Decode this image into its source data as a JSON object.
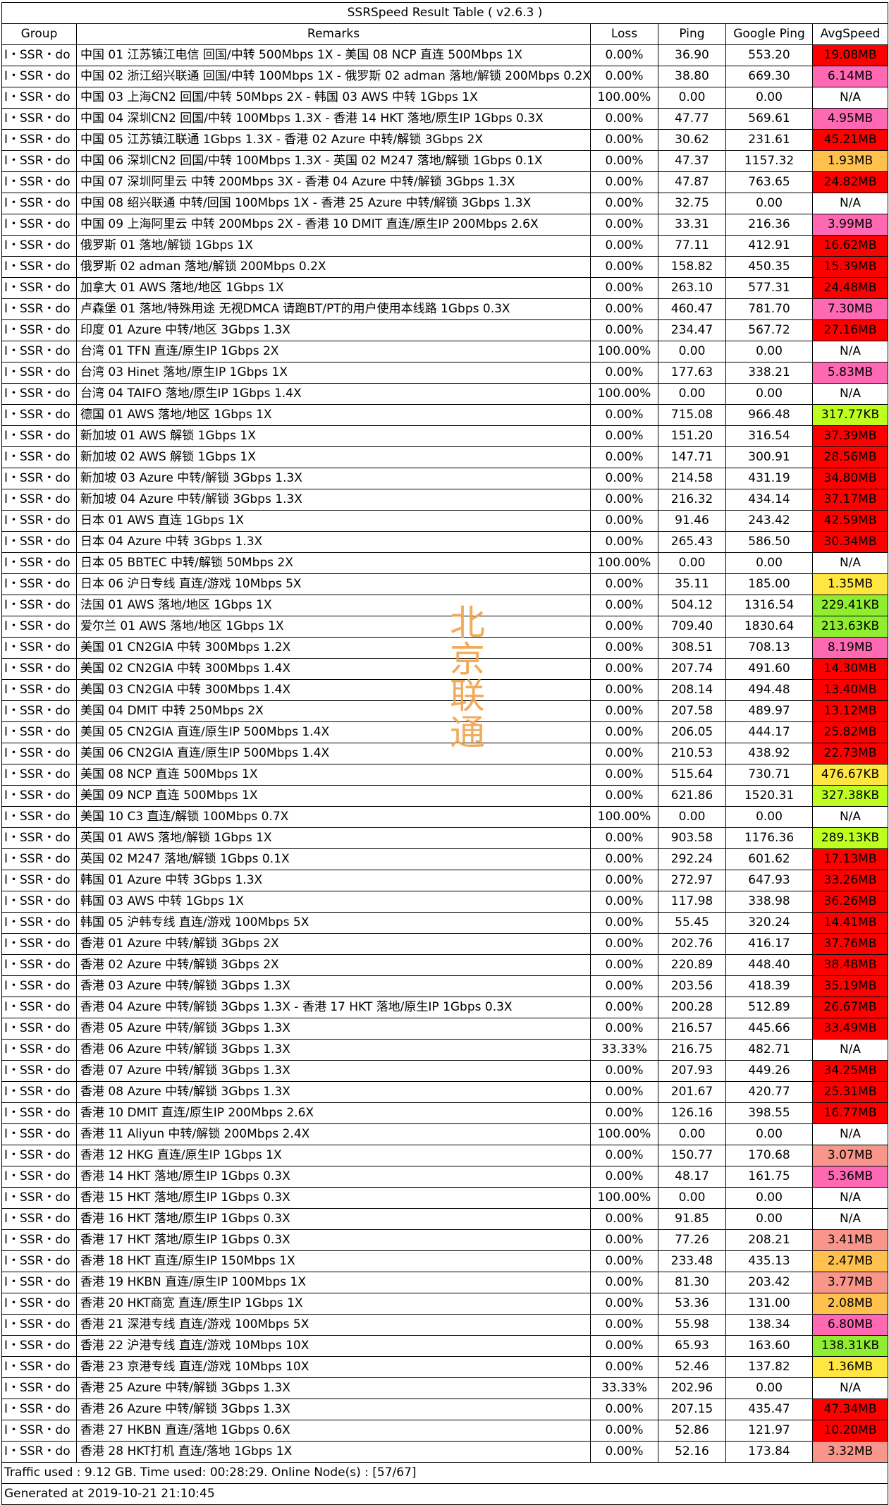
{
  "title": "SSRSpeed Result Table ( v2.6.3 )",
  "headers": [
    "Group",
    "Remarks",
    "Loss",
    "Ping",
    "Google Ping",
    "AvgSpeed"
  ],
  "colors": {
    "na": "#ffffff",
    "red": "#ff0000",
    "pink": "#ff69b4",
    "salmon": "#f9968b",
    "orange": "#ffc04d",
    "yellow": "#ffe640",
    "lime": "#bfff20",
    "green": "#90ee30"
  },
  "rows": [
    {
      "group": "I・SSR・do",
      "remarks": "中国 01 江苏镇江电信 回国/中转 500Mbps 1X - 美国 08 NCP 直连 500Mbps 1X",
      "loss": "0.00%",
      "ping": "36.90",
      "gping": "553.20",
      "speed": "19.08MB",
      "color": "red"
    },
    {
      "group": "I・SSR・do",
      "remarks": "中国 02 浙江绍兴联通 回国/中转 100Mbps 1X - 俄罗斯 02 adman 落地/解锁 200Mbps 0.2X",
      "loss": "0.00%",
      "ping": "38.80",
      "gping": "669.30",
      "speed": "6.14MB",
      "color": "pink"
    },
    {
      "group": "I・SSR・do",
      "remarks": "中国 03 上海CN2 回国/中转 50Mbps 2X - 韩国 03 AWS 中转 1Gbps 1X",
      "loss": "100.00%",
      "ping": "0.00",
      "gping": "0.00",
      "speed": "N/A",
      "color": "na"
    },
    {
      "group": "I・SSR・do",
      "remarks": "中国 04 深圳CN2 回国/中转 100Mbps 1.3X - 香港 14 HKT 落地/原生IP 1Gbps 0.3X",
      "loss": "0.00%",
      "ping": "47.77",
      "gping": "569.61",
      "speed": "4.95MB",
      "color": "pink"
    },
    {
      "group": "I・SSR・do",
      "remarks": "中国 05 江苏镇江联通 1Gbps 1.3X - 香港 02 Azure 中转/解锁 3Gbps 2X",
      "loss": "0.00%",
      "ping": "30.62",
      "gping": "231.61",
      "speed": "45.21MB",
      "color": "red"
    },
    {
      "group": "I・SSR・do",
      "remarks": "中国 06 深圳CN2 回国/中转 100Mbps 1.3X - 英国 02 M247 落地/解锁 1Gbps 0.1X",
      "loss": "0.00%",
      "ping": "47.37",
      "gping": "1157.32",
      "speed": "1.93MB",
      "color": "orange"
    },
    {
      "group": "I・SSR・do",
      "remarks": "中国 07 深圳阿里云 中转 200Mbps 3X - 香港 04 Azure 中转/解锁 3Gbps 1.3X",
      "loss": "0.00%",
      "ping": "47.87",
      "gping": "763.65",
      "speed": "24.82MB",
      "color": "red"
    },
    {
      "group": "I・SSR・do",
      "remarks": "中国 08 绍兴联通 中转/回国 100Mbps 1X - 香港 25 Azure 中转/解锁 3Gbps 1.3X",
      "loss": "0.00%",
      "ping": "32.75",
      "gping": "0.00",
      "speed": "N/A",
      "color": "na"
    },
    {
      "group": "I・SSR・do",
      "remarks": "中国 09 上海阿里云 中转 200Mbps 2X - 香港 10 DMIT 直连/原生IP 200Mbps 2.6X",
      "loss": "0.00%",
      "ping": "33.31",
      "gping": "216.36",
      "speed": "3.99MB",
      "color": "pink"
    },
    {
      "group": "I・SSR・do",
      "remarks": "俄罗斯 01 落地/解锁 1Gbps 1X",
      "loss": "0.00%",
      "ping": "77.11",
      "gping": "412.91",
      "speed": "16.62MB",
      "color": "red"
    },
    {
      "group": "I・SSR・do",
      "remarks": "俄罗斯 02 adman 落地/解锁 200Mbps 0.2X",
      "loss": "0.00%",
      "ping": "158.82",
      "gping": "450.35",
      "speed": "15.39MB",
      "color": "red"
    },
    {
      "group": "I・SSR・do",
      "remarks": "加拿大 01 AWS 落地/地区 1Gbps 1X",
      "loss": "0.00%",
      "ping": "263.10",
      "gping": "577.31",
      "speed": "24.48MB",
      "color": "red"
    },
    {
      "group": "I・SSR・do",
      "remarks": "卢森堡 01 落地/特殊用途 无视DMCA 请跑BT/PT的用户使用本线路 1Gbps 0.3X",
      "loss": "0.00%",
      "ping": "460.47",
      "gping": "781.70",
      "speed": "7.30MB",
      "color": "pink"
    },
    {
      "group": "I・SSR・do",
      "remarks": "印度 01 Azure 中转/地区 3Gbps 1.3X",
      "loss": "0.00%",
      "ping": "234.47",
      "gping": "567.72",
      "speed": "27.16MB",
      "color": "red"
    },
    {
      "group": "I・SSR・do",
      "remarks": "台湾 01 TFN 直连/原生IP 1Gbps 2X",
      "loss": "100.00%",
      "ping": "0.00",
      "gping": "0.00",
      "speed": "N/A",
      "color": "na"
    },
    {
      "group": "I・SSR・do",
      "remarks": "台湾 03 Hinet 落地/原生IP 1Gbps 1X",
      "loss": "0.00%",
      "ping": "177.63",
      "gping": "338.21",
      "speed": "5.83MB",
      "color": "pink"
    },
    {
      "group": "I・SSR・do",
      "remarks": "台湾 04 TAIFO 落地/原生IP 1Gbps 1.4X",
      "loss": "100.00%",
      "ping": "0.00",
      "gping": "0.00",
      "speed": "N/A",
      "color": "na"
    },
    {
      "group": "I・SSR・do",
      "remarks": "德国 01 AWS 落地/地区 1Gbps 1X",
      "loss": "0.00%",
      "ping": "715.08",
      "gping": "966.48",
      "speed": "317.77KB",
      "color": "lime"
    },
    {
      "group": "I・SSR・do",
      "remarks": "新加坡 01 AWS 解锁 1Gbps 1X",
      "loss": "0.00%",
      "ping": "151.20",
      "gping": "316.54",
      "speed": "37.39MB",
      "color": "red"
    },
    {
      "group": "I・SSR・do",
      "remarks": "新加坡 02 AWS 解锁 1Gbps 1X",
      "loss": "0.00%",
      "ping": "147.71",
      "gping": "300.91",
      "speed": "28.56MB",
      "color": "red"
    },
    {
      "group": "I・SSR・do",
      "remarks": "新加坡 03 Azure 中转/解锁 3Gbps 1.3X",
      "loss": "0.00%",
      "ping": "214.58",
      "gping": "431.19",
      "speed": "34.80MB",
      "color": "red"
    },
    {
      "group": "I・SSR・do",
      "remarks": "新加坡 04 Azure 中转/解锁 3Gbps 1.3X",
      "loss": "0.00%",
      "ping": "216.32",
      "gping": "434.14",
      "speed": "37.17MB",
      "color": "red"
    },
    {
      "group": "I・SSR・do",
      "remarks": "日本 01 AWS 直连 1Gbps 1X",
      "loss": "0.00%",
      "ping": "91.46",
      "gping": "243.42",
      "speed": "42.59MB",
      "color": "red"
    },
    {
      "group": "I・SSR・do",
      "remarks": "日本 04 Azure 中转 3Gbps 1.3X",
      "loss": "0.00%",
      "ping": "265.43",
      "gping": "586.50",
      "speed": "30.34MB",
      "color": "red"
    },
    {
      "group": "I・SSR・do",
      "remarks": "日本 05 BBTEC 中转/解锁 50Mbps 2X",
      "loss": "100.00%",
      "ping": "0.00",
      "gping": "0.00",
      "speed": "N/A",
      "color": "na"
    },
    {
      "group": "I・SSR・do",
      "remarks": "日本 06 沪日专线 直连/游戏 10Mbps 5X",
      "loss": "0.00%",
      "ping": "35.11",
      "gping": "185.00",
      "speed": "1.35MB",
      "color": "yellow"
    },
    {
      "group": "I・SSR・do",
      "remarks": "法国 01 AWS 落地/地区 1Gbps 1X",
      "loss": "0.00%",
      "ping": "504.12",
      "gping": "1316.54",
      "speed": "229.41KB",
      "color": "green"
    },
    {
      "group": "I・SSR・do",
      "remarks": "爱尔兰 01 AWS 落地/地区 1Gbps 1X",
      "loss": "0.00%",
      "ping": "709.40",
      "gping": "1830.64",
      "speed": "213.63KB",
      "color": "green"
    },
    {
      "group": "I・SSR・do",
      "remarks": "美国 01 CN2GIA 中转 300Mbps 1.2X",
      "loss": "0.00%",
      "ping": "308.51",
      "gping": "708.13",
      "speed": "8.19MB",
      "color": "pink"
    },
    {
      "group": "I・SSR・do",
      "remarks": "美国 02 CN2GIA 中转 300Mbps 1.4X",
      "loss": "0.00%",
      "ping": "207.74",
      "gping": "491.60",
      "speed": "14.30MB",
      "color": "red"
    },
    {
      "group": "I・SSR・do",
      "remarks": "美国 03 CN2GIA 中转 300Mbps 1.4X",
      "loss": "0.00%",
      "ping": "208.14",
      "gping": "494.48",
      "speed": "13.40MB",
      "color": "red"
    },
    {
      "group": "I・SSR・do",
      "remarks": "美国 04 DMIT 中转 250Mbps 2X",
      "loss": "0.00%",
      "ping": "207.58",
      "gping": "489.97",
      "speed": "13.12MB",
      "color": "red"
    },
    {
      "group": "I・SSR・do",
      "remarks": "美国 05 CN2GIA 直连/原生IP 500Mbps 1.4X",
      "loss": "0.00%",
      "ping": "206.05",
      "gping": "444.17",
      "speed": "25.82MB",
      "color": "red"
    },
    {
      "group": "I・SSR・do",
      "remarks": "美国 06 CN2GIA 直连/原生IP 500Mbps 1.4X",
      "loss": "0.00%",
      "ping": "210.53",
      "gping": "438.92",
      "speed": "22.73MB",
      "color": "red"
    },
    {
      "group": "I・SSR・do",
      "remarks": "美国 08 NCP 直连 500Mbps 1X",
      "loss": "0.00%",
      "ping": "515.64",
      "gping": "730.71",
      "speed": "476.67KB",
      "color": "yellow"
    },
    {
      "group": "I・SSR・do",
      "remarks": "美国 09 NCP 直连 500Mbps 1X",
      "loss": "0.00%",
      "ping": "621.86",
      "gping": "1520.31",
      "speed": "327.38KB",
      "color": "lime"
    },
    {
      "group": "I・SSR・do",
      "remarks": "美国 10 C3 直连/解锁 100Mbps 0.7X",
      "loss": "100.00%",
      "ping": "0.00",
      "gping": "0.00",
      "speed": "N/A",
      "color": "na"
    },
    {
      "group": "I・SSR・do",
      "remarks": "英国 01 AWS 落地/解锁 1Gbps 1X",
      "loss": "0.00%",
      "ping": "903.58",
      "gping": "1176.36",
      "speed": "289.13KB",
      "color": "lime"
    },
    {
      "group": "I・SSR・do",
      "remarks": "英国 02 M247 落地/解锁 1Gbps 0.1X",
      "loss": "0.00%",
      "ping": "292.24",
      "gping": "601.62",
      "speed": "17.13MB",
      "color": "red"
    },
    {
      "group": "I・SSR・do",
      "remarks": "韩国 01 Azure 中转 3Gbps 1.3X",
      "loss": "0.00%",
      "ping": "272.97",
      "gping": "647.93",
      "speed": "33.26MB",
      "color": "red"
    },
    {
      "group": "I・SSR・do",
      "remarks": "韩国 03 AWS 中转 1Gbps 1X",
      "loss": "0.00%",
      "ping": "117.98",
      "gping": "338.98",
      "speed": "36.26MB",
      "color": "red"
    },
    {
      "group": "I・SSR・do",
      "remarks": "韩国 05 沪韩专线 直连/游戏 100Mbps 5X",
      "loss": "0.00%",
      "ping": "55.45",
      "gping": "320.24",
      "speed": "14.41MB",
      "color": "red"
    },
    {
      "group": "I・SSR・do",
      "remarks": "香港 01 Azure 中转/解锁 3Gbps 2X",
      "loss": "0.00%",
      "ping": "202.76",
      "gping": "416.17",
      "speed": "37.76MB",
      "color": "red"
    },
    {
      "group": "I・SSR・do",
      "remarks": "香港 02 Azure 中转/解锁 3Gbps 2X",
      "loss": "0.00%",
      "ping": "220.89",
      "gping": "448.40",
      "speed": "38.48MB",
      "color": "red"
    },
    {
      "group": "I・SSR・do",
      "remarks": "香港 03 Azure 中转/解锁 3Gbps 1.3X",
      "loss": "0.00%",
      "ping": "203.56",
      "gping": "418.39",
      "speed": "35.19MB",
      "color": "red"
    },
    {
      "group": "I・SSR・do",
      "remarks": "香港 04 Azure 中转/解锁 3Gbps 1.3X - 香港 17 HKT 落地/原生IP 1Gbps 0.3X",
      "loss": "0.00%",
      "ping": "200.28",
      "gping": "512.89",
      "speed": "26.67MB",
      "color": "red"
    },
    {
      "group": "I・SSR・do",
      "remarks": "香港 05 Azure 中转/解锁 3Gbps 1.3X",
      "loss": "0.00%",
      "ping": "216.57",
      "gping": "445.66",
      "speed": "33.49MB",
      "color": "red"
    },
    {
      "group": "I・SSR・do",
      "remarks": "香港 06 Azure 中转/解锁 3Gbps 1.3X",
      "loss": "33.33%",
      "ping": "216.75",
      "gping": "482.71",
      "speed": "N/A",
      "color": "na"
    },
    {
      "group": "I・SSR・do",
      "remarks": "香港 07 Azure 中转/解锁 3Gbps 1.3X",
      "loss": "0.00%",
      "ping": "207.93",
      "gping": "449.26",
      "speed": "34.25MB",
      "color": "red"
    },
    {
      "group": "I・SSR・do",
      "remarks": "香港 08 Azure 中转/解锁 3Gbps 1.3X",
      "loss": "0.00%",
      "ping": "201.67",
      "gping": "420.77",
      "speed": "25.31MB",
      "color": "red"
    },
    {
      "group": "I・SSR・do",
      "remarks": "香港 10 DMIT 直连/原生IP 200Mbps 2.6X",
      "loss": "0.00%",
      "ping": "126.16",
      "gping": "398.55",
      "speed": "16.77MB",
      "color": "red"
    },
    {
      "group": "I・SSR・do",
      "remarks": "香港 11 Aliyun 中转/解锁 200Mbps 2.4X",
      "loss": "100.00%",
      "ping": "0.00",
      "gping": "0.00",
      "speed": "N/A",
      "color": "na"
    },
    {
      "group": "I・SSR・do",
      "remarks": "香港 12 HKG 直连/原生IP 1Gbps 1X",
      "loss": "0.00%",
      "ping": "150.77",
      "gping": "170.68",
      "speed": "3.07MB",
      "color": "salmon"
    },
    {
      "group": "I・SSR・do",
      "remarks": "香港 14 HKT 落地/原生IP 1Gbps 0.3X",
      "loss": "0.00%",
      "ping": "48.17",
      "gping": "161.75",
      "speed": "5.36MB",
      "color": "pink"
    },
    {
      "group": "I・SSR・do",
      "remarks": "香港 15 HKT 落地/原生IP 1Gbps 0.3X",
      "loss": "100.00%",
      "ping": "0.00",
      "gping": "0.00",
      "speed": "N/A",
      "color": "na"
    },
    {
      "group": "I・SSR・do",
      "remarks": "香港 16 HKT 落地/原生IP 1Gbps 0.3X",
      "loss": "0.00%",
      "ping": "91.85",
      "gping": "0.00",
      "speed": "N/A",
      "color": "na"
    },
    {
      "group": "I・SSR・do",
      "remarks": "香港 17 HKT 落地/原生IP 1Gbps 0.3X",
      "loss": "0.00%",
      "ping": "77.26",
      "gping": "208.21",
      "speed": "3.41MB",
      "color": "salmon"
    },
    {
      "group": "I・SSR・do",
      "remarks": "香港 18 HKT 直连/原生IP 150Mbps 1X",
      "loss": "0.00%",
      "ping": "233.48",
      "gping": "435.13",
      "speed": "2.47MB",
      "color": "orange"
    },
    {
      "group": "I・SSR・do",
      "remarks": "香港 19 HKBN 直连/原生IP 100Mbps 1X",
      "loss": "0.00%",
      "ping": "81.30",
      "gping": "203.42",
      "speed": "3.77MB",
      "color": "salmon"
    },
    {
      "group": "I・SSR・do",
      "remarks": "香港 20 HKT商宽 直连/原生IP 1Gbps 1X",
      "loss": "0.00%",
      "ping": "53.36",
      "gping": "131.00",
      "speed": "2.08MB",
      "color": "orange"
    },
    {
      "group": "I・SSR・do",
      "remarks": "香港 21 深港专线 直连/游戏 100Mbps 5X",
      "loss": "0.00%",
      "ping": "55.98",
      "gping": "138.34",
      "speed": "6.80MB",
      "color": "pink"
    },
    {
      "group": "I・SSR・do",
      "remarks": "香港 22 沪港专线 直连/游戏 10Mbps 10X",
      "loss": "0.00%",
      "ping": "65.93",
      "gping": "163.60",
      "speed": "138.31KB",
      "color": "green"
    },
    {
      "group": "I・SSR・do",
      "remarks": "香港 23 京港专线 直连/游戏 10Mbps 10X",
      "loss": "0.00%",
      "ping": "52.46",
      "gping": "137.82",
      "speed": "1.36MB",
      "color": "yellow"
    },
    {
      "group": "I・SSR・do",
      "remarks": "香港 25 Azure 中转/解锁 3Gbps 1.3X",
      "loss": "33.33%",
      "ping": "202.96",
      "gping": "0.00",
      "speed": "N/A",
      "color": "na"
    },
    {
      "group": "I・SSR・do",
      "remarks": "香港 26 Azure 中转/解锁 3Gbps 1.3X",
      "loss": "0.00%",
      "ping": "207.15",
      "gping": "435.47",
      "speed": "47.34MB",
      "color": "red"
    },
    {
      "group": "I・SSR・do",
      "remarks": "香港 27 HKBN 直连/落地 1Gbps 0.6X",
      "loss": "0.00%",
      "ping": "52.86",
      "gping": "121.97",
      "speed": "10.20MB",
      "color": "red"
    },
    {
      "group": "I・SSR・do",
      "remarks": "香港 28 HKT打机 直连/落地 1Gbps 1X",
      "loss": "0.00%",
      "ping": "52.16",
      "gping": "173.84",
      "speed": "3.32MB",
      "color": "salmon"
    }
  ],
  "footer": {
    "traffic": "Traffic used : 9.12 GB. Time used: 00:28:29. Online Node(s) : [57/67]",
    "generated": "Generated at 2019-10-21 21:10:45"
  },
  "watermark": [
    "北",
    "京",
    "联",
    "通"
  ]
}
